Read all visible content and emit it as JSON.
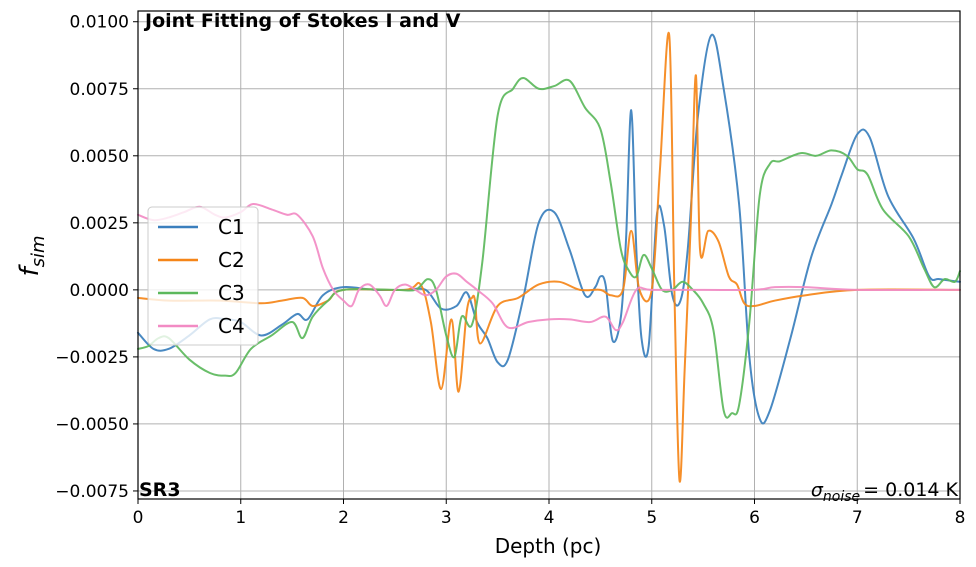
{
  "chart_data": {
    "type": "line",
    "title": "Joint Fitting of Stokes I and V",
    "xlabel": "Depth (pc)",
    "ylabel_main": "f",
    "ylabel_sub": "sim",
    "xlim": [
      0,
      8
    ],
    "ylim": [
      -0.0078,
      0.0104
    ],
    "xticks": [
      0,
      1,
      2,
      3,
      4,
      5,
      6,
      7,
      8
    ],
    "xtick_labels": [
      "0",
      "1",
      "2",
      "3",
      "4",
      "5",
      "6",
      "7",
      "8"
    ],
    "yticks": [
      -0.0075,
      -0.005,
      -0.0025,
      0.0,
      0.0025,
      0.005,
      0.0075,
      0.01
    ],
    "ytick_labels": [
      "−0.0075",
      "−0.0050",
      "−0.0025",
      "0.0000",
      "0.0025",
      "0.0050",
      "0.0075",
      "0.0100"
    ],
    "grid": true,
    "legend_position": "center-left",
    "region_label": "SR3",
    "noise_label": {
      "symbol": "σ",
      "subscript": "noise",
      "value_text": "= 0.014 K"
    },
    "series": [
      {
        "name": "C1",
        "color": "#3a7fbd",
        "points": [
          [
            0,
            -0.0016
          ],
          [
            0.15,
            -0.0022
          ],
          [
            0.3,
            -0.0022
          ],
          [
            0.5,
            -0.0017
          ],
          [
            0.7,
            -0.0011
          ],
          [
            0.85,
            -0.0011
          ],
          [
            1.0,
            -0.0012
          ],
          [
            1.2,
            -0.0017
          ],
          [
            1.4,
            -0.0013
          ],
          [
            1.55,
            -0.0009
          ],
          [
            1.65,
            -0.0011
          ],
          [
            1.8,
            -0.0002
          ],
          [
            2.0,
            0.0001
          ],
          [
            2.3,
            0.0
          ],
          [
            2.6,
            0.0
          ],
          [
            2.8,
            0.0
          ],
          [
            2.95,
            -0.0007
          ],
          [
            3.1,
            -0.0006
          ],
          [
            3.2,
            -0.0001
          ],
          [
            3.3,
            -0.0012
          ],
          [
            3.4,
            -0.0018
          ],
          [
            3.5,
            -0.0027
          ],
          [
            3.6,
            -0.0026
          ],
          [
            3.75,
            -0.0003
          ],
          [
            3.9,
            0.0025
          ],
          [
            4.05,
            0.0029
          ],
          [
            4.2,
            0.0015
          ],
          [
            4.35,
            -0.0002
          ],
          [
            4.45,
            0.0001
          ],
          [
            4.5,
            0.0005
          ],
          [
            4.55,
            0.0002
          ],
          [
            4.62,
            -0.0019
          ],
          [
            4.7,
            -0.001
          ],
          [
            4.75,
            0.0019
          ],
          [
            4.8,
            0.0067
          ],
          [
            4.85,
            0.0015
          ],
          [
            4.9,
            -0.0018
          ],
          [
            4.97,
            -0.0021
          ],
          [
            5.05,
            0.0028
          ],
          [
            5.12,
            0.0024
          ],
          [
            5.2,
            -0.0002
          ],
          [
            5.28,
            -0.0004
          ],
          [
            5.35,
            0.0015
          ],
          [
            5.45,
            0.0065
          ],
          [
            5.58,
            0.0095
          ],
          [
            5.7,
            0.0075
          ],
          [
            5.85,
            0.0032
          ],
          [
            5.95,
            -0.0025
          ],
          [
            6.05,
            -0.0048
          ],
          [
            6.15,
            -0.0045
          ],
          [
            6.35,
            -0.0018
          ],
          [
            6.55,
            0.0012
          ],
          [
            6.75,
            0.0032
          ],
          [
            6.85,
            0.0043
          ],
          [
            7.0,
            0.0058
          ],
          [
            7.12,
            0.0057
          ],
          [
            7.3,
            0.0035
          ],
          [
            7.55,
            0.0019
          ],
          [
            7.7,
            0.0005
          ],
          [
            7.8,
            0.0004
          ],
          [
            8.0,
            0.0003
          ]
        ]
      },
      {
        "name": "C2",
        "color": "#f58518",
        "points": [
          [
            0,
            -0.0003
          ],
          [
            0.3,
            -0.0004
          ],
          [
            0.8,
            -0.0004
          ],
          [
            1.2,
            -0.0005
          ],
          [
            1.4,
            -0.0004
          ],
          [
            1.6,
            -0.0003
          ],
          [
            1.7,
            -0.0006
          ],
          [
            1.85,
            -0.0004
          ],
          [
            2.0,
            0.0
          ],
          [
            2.6,
            0.0
          ],
          [
            2.75,
            0.0002
          ],
          [
            2.85,
            -0.0012
          ],
          [
            2.95,
            -0.0037
          ],
          [
            3.05,
            -0.0011
          ],
          [
            3.12,
            -0.0038
          ],
          [
            3.2,
            -0.0008
          ],
          [
            3.25,
            -0.0003
          ],
          [
            3.28,
            -0.0004
          ],
          [
            3.33,
            -0.002
          ],
          [
            3.5,
            -0.0006
          ],
          [
            3.7,
            -0.0003
          ],
          [
            3.9,
            0.0002
          ],
          [
            4.1,
            0.0003
          ],
          [
            4.3,
            0.0
          ],
          [
            4.5,
            0.0
          ],
          [
            4.6,
            -0.0002
          ],
          [
            4.72,
            0.0
          ],
          [
            4.8,
            0.0022
          ],
          [
            4.88,
            0.0
          ],
          [
            5.0,
            0.0
          ],
          [
            5.08,
            0.0045
          ],
          [
            5.17,
            0.0095
          ],
          [
            5.22,
            0.0
          ],
          [
            5.27,
            -0.0071
          ],
          [
            5.32,
            -0.003
          ],
          [
            5.38,
            0.0025
          ],
          [
            5.43,
            0.008
          ],
          [
            5.47,
            0.0015
          ],
          [
            5.55,
            0.0022
          ],
          [
            5.65,
            0.0018
          ],
          [
            5.75,
            0.0005
          ],
          [
            5.83,
            0.0002
          ],
          [
            5.9,
            -0.0005
          ],
          [
            6.0,
            -0.0006
          ],
          [
            6.2,
            -0.0004
          ],
          [
            6.5,
            -0.0002
          ],
          [
            7.0,
            0.0
          ],
          [
            8.0,
            0.0
          ]
        ]
      },
      {
        "name": "C3",
        "color": "#5cb85c",
        "points": [
          [
            0,
            -0.0022
          ],
          [
            0.1,
            -0.0021
          ],
          [
            0.2,
            -0.0018
          ],
          [
            0.3,
            -0.0018
          ],
          [
            0.5,
            -0.0026
          ],
          [
            0.7,
            -0.0031
          ],
          [
            0.85,
            -0.0032
          ],
          [
            0.95,
            -0.0031
          ],
          [
            1.1,
            -0.0022
          ],
          [
            1.3,
            -0.0017
          ],
          [
            1.5,
            -0.0012
          ],
          [
            1.6,
            -0.0018
          ],
          [
            1.7,
            -0.001
          ],
          [
            1.85,
            -0.0004
          ],
          [
            2.0,
            0.0
          ],
          [
            2.5,
            0.0
          ],
          [
            2.7,
            0.0
          ],
          [
            2.82,
            0.0004
          ],
          [
            2.9,
            0.0
          ],
          [
            3.0,
            -0.0017
          ],
          [
            3.08,
            -0.0025
          ],
          [
            3.15,
            -0.001
          ],
          [
            3.25,
            -0.0013
          ],
          [
            3.35,
            0.001
          ],
          [
            3.5,
            0.0065
          ],
          [
            3.65,
            0.0075
          ],
          [
            3.75,
            0.0079
          ],
          [
            3.9,
            0.0075
          ],
          [
            4.05,
            0.0076
          ],
          [
            4.2,
            0.0078
          ],
          [
            4.35,
            0.0068
          ],
          [
            4.5,
            0.006
          ],
          [
            4.6,
            0.004
          ],
          [
            4.7,
            0.0015
          ],
          [
            4.78,
            0.0007
          ],
          [
            4.85,
            0.0005
          ],
          [
            4.92,
            0.0013
          ],
          [
            5.0,
            0.0008
          ],
          [
            5.1,
            0.0
          ],
          [
            5.2,
            0.0
          ],
          [
            5.3,
            0.0003
          ],
          [
            5.4,
            0.0
          ],
          [
            5.5,
            -0.0005
          ],
          [
            5.6,
            -0.0015
          ],
          [
            5.7,
            -0.0045
          ],
          [
            5.78,
            -0.0046
          ],
          [
            5.85,
            -0.0043
          ],
          [
            5.95,
            -0.0012
          ],
          [
            6.05,
            0.0035
          ],
          [
            6.15,
            0.0047
          ],
          [
            6.25,
            0.0048
          ],
          [
            6.45,
            0.0051
          ],
          [
            6.6,
            0.005
          ],
          [
            6.75,
            0.0052
          ],
          [
            6.9,
            0.005
          ],
          [
            7.0,
            0.0045
          ],
          [
            7.1,
            0.0043
          ],
          [
            7.25,
            0.003
          ],
          [
            7.5,
            0.002
          ],
          [
            7.65,
            0.0008
          ],
          [
            7.75,
            0.0001
          ],
          [
            7.85,
            0.0004
          ],
          [
            7.95,
            0.0003
          ],
          [
            8.0,
            0.0007
          ]
        ]
      },
      {
        "name": "C4",
        "color": "#f28bc4",
        "points": [
          [
            0,
            0.0028
          ],
          [
            0.15,
            0.0026
          ],
          [
            0.3,
            0.0027
          ],
          [
            0.45,
            0.0029
          ],
          [
            0.6,
            0.0031
          ],
          [
            0.75,
            0.0028
          ],
          [
            0.85,
            0.0027
          ],
          [
            1.0,
            0.0029
          ],
          [
            1.12,
            0.0032
          ],
          [
            1.3,
            0.003
          ],
          [
            1.45,
            0.0028
          ],
          [
            1.55,
            0.0028
          ],
          [
            1.7,
            0.002
          ],
          [
            1.8,
            0.0008
          ],
          [
            1.9,
            0.0
          ],
          [
            2.0,
            -0.0004
          ],
          [
            2.08,
            -0.0006
          ],
          [
            2.15,
            0.0
          ],
          [
            2.25,
            0.0002
          ],
          [
            2.35,
            -0.0002
          ],
          [
            2.42,
            -0.0006
          ],
          [
            2.5,
            0.0
          ],
          [
            2.6,
            0.0002
          ],
          [
            2.7,
            0.0
          ],
          [
            2.8,
            -0.0002
          ],
          [
            2.9,
            0.0
          ],
          [
            3.0,
            0.0005
          ],
          [
            3.1,
            0.0006
          ],
          [
            3.2,
            0.0003
          ],
          [
            3.3,
            0.0
          ],
          [
            3.45,
            -0.0005
          ],
          [
            3.6,
            -0.0014
          ],
          [
            3.8,
            -0.0012
          ],
          [
            4.0,
            -0.0011
          ],
          [
            4.2,
            -0.0011
          ],
          [
            4.4,
            -0.0012
          ],
          [
            4.55,
            -0.001
          ],
          [
            4.65,
            -0.0015
          ],
          [
            4.72,
            -0.0012
          ],
          [
            4.85,
            0.0
          ],
          [
            5.0,
            0.0
          ],
          [
            5.5,
            0.0
          ],
          [
            6.0,
            0.0
          ],
          [
            6.2,
            0.0001
          ],
          [
            6.5,
            0.0001
          ],
          [
            7.0,
            0.0
          ],
          [
            8.0,
            0.0
          ]
        ]
      }
    ]
  }
}
